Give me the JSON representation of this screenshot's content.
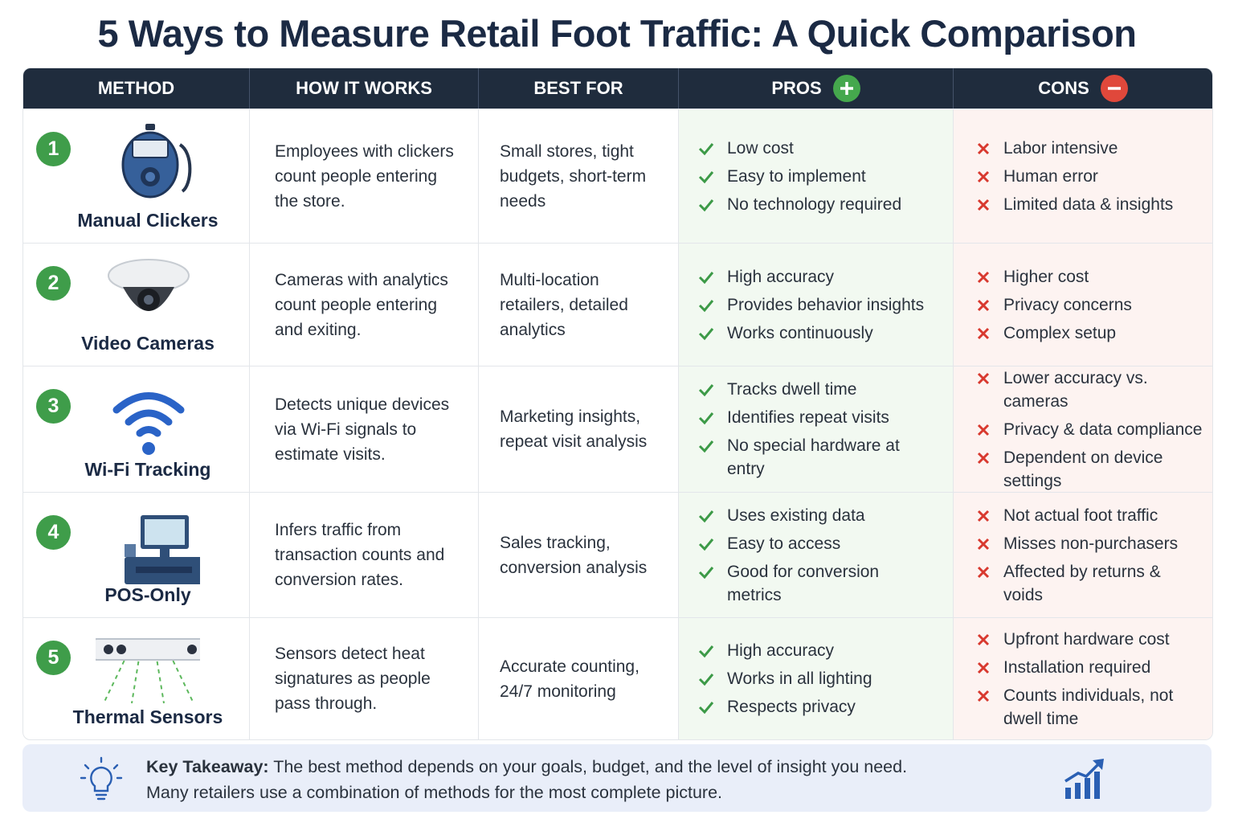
{
  "title": "5 Ways to Measure Retail Foot Traffic: A Quick Comparison",
  "table": {
    "headers": [
      "METHOD",
      "HOW IT WORKS",
      "BEST FOR",
      "PROS",
      "CONS"
    ],
    "rows": [
      {
        "number": "1",
        "method": "Manual Clickers",
        "how": "Employees with clickers count people entering the store.",
        "best_for": "Small stores, tight budgets, short-term needs",
        "pros": [
          "Low cost",
          "Easy to implement",
          "No technology required"
        ],
        "cons": [
          "Labor intensive",
          "Human error",
          "Limited data & insights"
        ]
      },
      {
        "number": "2",
        "method": "Video Cameras",
        "how": "Cameras with analytics count people entering and exiting.",
        "best_for": "Multi-location retailers, detailed analytics",
        "pros": [
          "High accuracy",
          "Provides behavior insights",
          "Works continuously"
        ],
        "cons": [
          "Higher cost",
          "Privacy concerns",
          "Complex setup"
        ]
      },
      {
        "number": "3",
        "method": "Wi-Fi Tracking",
        "how": "Detects unique devices via Wi-Fi signals to estimate visits.",
        "best_for": "Marketing insights, repeat visit analysis",
        "pros": [
          "Tracks dwell time",
          "Identifies repeat visits",
          "No special hardware at entry"
        ],
        "cons": [
          "Lower accuracy vs. cameras",
          "Privacy & data compliance",
          "Dependent on device settings"
        ]
      },
      {
        "number": "4",
        "method": "POS-Only",
        "how": "Infers traffic from transaction counts and conversion rates.",
        "best_for": "Sales tracking, conversion analysis",
        "pros": [
          "Uses existing data",
          "Easy to access",
          "Good for conversion metrics"
        ],
        "cons": [
          "Not actual foot traffic",
          "Misses non-purchasers",
          "Affected by returns & voids"
        ]
      },
      {
        "number": "5",
        "method": "Thermal Sensors",
        "how": "Sensors detect heat signatures as people pass through.",
        "best_for": "Accurate counting, 24/7 monitoring",
        "pros": [
          "High accuracy",
          "Works in all lighting",
          "Respects privacy"
        ],
        "cons": [
          "Upfront hardware cost",
          "Installation required",
          "Counts individuals, not dwell time"
        ]
      }
    ]
  },
  "takeaway": {
    "label": "Key Takeaway:",
    "lines": [
      "The best method depends on your goals, budget, and the level of insight you need.",
      "Many retailers use a combination of methods for the most complete picture."
    ]
  }
}
